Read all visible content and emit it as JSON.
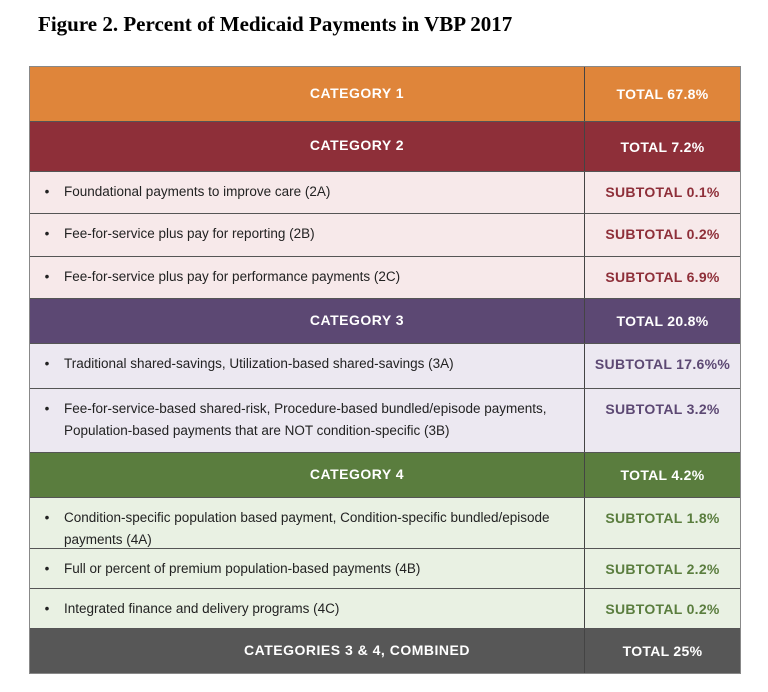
{
  "title": "Figure 2. Percent of Medicaid Payments in VBP 2017",
  "colors": {
    "cat1": "#df853a",
    "cat2": "#8e2f39",
    "cat2_light": "#f7e9ea",
    "cat3": "#5c4873",
    "cat3_light": "#ece8f1",
    "cat4": "#5a7d3e",
    "cat4_light": "#e9f1e3",
    "combined": "#575757"
  },
  "rows": [
    {
      "type": "cat",
      "label": "CATEGORY 1",
      "value": "TOTAL 67.8%",
      "group": "cat1"
    },
    {
      "type": "cat",
      "label": "CATEGORY 2",
      "value": "TOTAL 7.2%",
      "group": "cat2"
    },
    {
      "type": "sub",
      "label": "Foundational payments to improve care (2A)",
      "value": "SUBTOTAL 0.1%",
      "group": "cat2"
    },
    {
      "type": "sub",
      "label": "Fee-for-service plus pay for reporting (2B)",
      "value": "SUBTOTAL 0.2%",
      "group": "cat2"
    },
    {
      "type": "sub",
      "label": "Fee-for-service plus pay for performance payments (2C)",
      "value": "SUBTOTAL 6.9%",
      "group": "cat2"
    },
    {
      "type": "cat",
      "label": "CATEGORY 3",
      "value": "TOTAL 20.8%",
      "group": "cat3"
    },
    {
      "type": "sub",
      "label": "Traditional shared-savings, Utilization-based shared-savings (3A)",
      "value": "SUBTOTAL 17.6%%",
      "group": "cat3"
    },
    {
      "type": "sub",
      "label": "Fee-for-service-based shared-risk, Procedure-based bundled/episode payments, Population-based payments that are NOT condition-specific (3B)",
      "value": "SUBTOTAL 3.2%",
      "group": "cat3"
    },
    {
      "type": "cat",
      "label": "CATEGORY 4",
      "value": "TOTAL 4.2%",
      "group": "cat4"
    },
    {
      "type": "sub",
      "label": "Condition-specific population based payment, Condition-specific bundled/episode payments (4A)",
      "value": "SUBTOTAL 1.8%",
      "group": "cat4"
    },
    {
      "type": "sub",
      "label": "Full or percent of premium population-based payments (4B)",
      "value": "SUBTOTAL 2.2%",
      "group": "cat4"
    },
    {
      "type": "sub",
      "label": "Integrated finance and delivery programs (4C)",
      "value": "SUBTOTAL 0.2%",
      "group": "cat4"
    },
    {
      "type": "cat",
      "label": "CATEGORIES 3 & 4, COMBINED",
      "value": "TOTAL 25%",
      "group": "combined"
    }
  ]
}
